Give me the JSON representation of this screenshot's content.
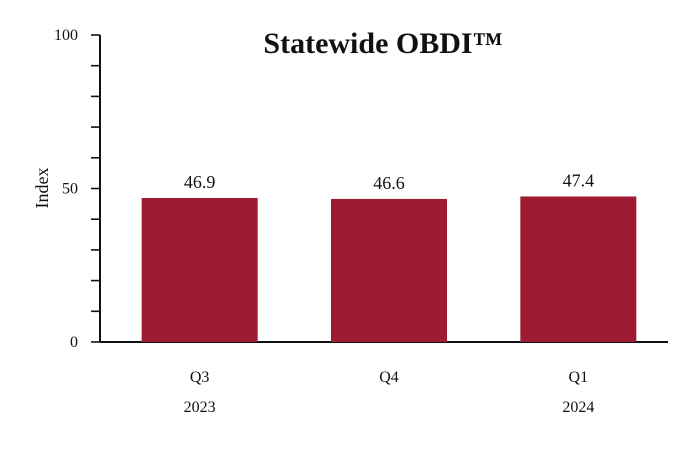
{
  "chart_data": {
    "type": "bar",
    "title": "Statewide OBDI™",
    "xlabel": "",
    "ylabel": "Index",
    "ylim": [
      0,
      100
    ],
    "yticks": [
      0,
      50,
      100
    ],
    "minor_tick_step": 10,
    "categories": [
      "Q3",
      "Q4",
      "Q1"
    ],
    "category_years": [
      "2023",
      "",
      "2024"
    ],
    "values": [
      46.9,
      46.6,
      47.4
    ],
    "data_labels": [
      "46.9",
      "46.6",
      "47.4"
    ],
    "bar_color": "#9e1b32",
    "grid": false,
    "legend": "none"
  }
}
